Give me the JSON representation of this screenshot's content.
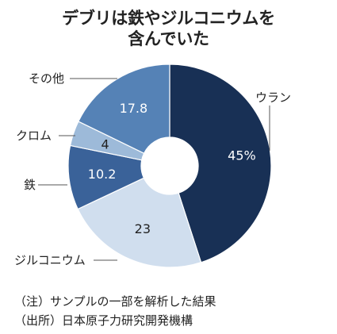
{
  "chart_data": {
    "type": "pie",
    "donut": true,
    "title_lines": [
      "デブリは鉄やジルコニウムを",
      "含んでいた"
    ],
    "slices": [
      {
        "label": "ウラン",
        "value": 45,
        "value_label": "45%",
        "color": "#183055",
        "text_color": "#ffffff"
      },
      {
        "label": "ジルコニウム",
        "value": 23,
        "value_label": "23",
        "color": "#d0deee",
        "text_color": "#222222"
      },
      {
        "label": "鉄",
        "value": 10.2,
        "value_label": "10.2",
        "color": "#3a6299",
        "text_color": "#ffffff"
      },
      {
        "label": "クロム",
        "value": 4,
        "value_label": "4",
        "color": "#9dbad9",
        "text_color": "#222222"
      },
      {
        "label": "その他",
        "value": 17.8,
        "value_label": "17.8",
        "color": "#5582b6",
        "text_color": "#ffffff"
      }
    ],
    "start": "12 o'clock",
    "direction": "clockwise"
  },
  "notes": {
    "note": "（注）サンプルの一部を解析した結果",
    "source": "（出所）日本原子力研究開発機構"
  }
}
